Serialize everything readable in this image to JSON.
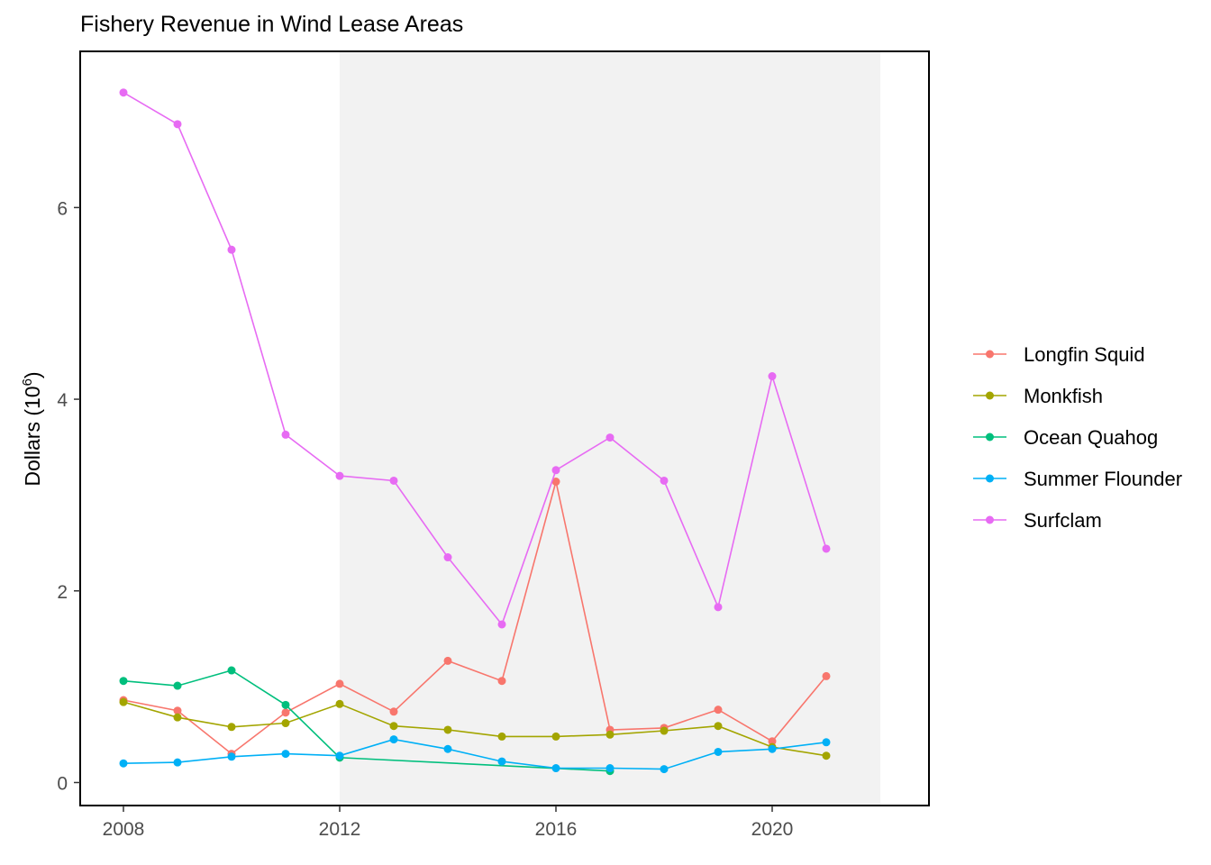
{
  "chart_data": {
    "type": "line",
    "title": "Fishery Revenue in Wind Lease Areas",
    "xlabel": "",
    "ylabel": "Dollars (10",
    "ylabel_superscript": "6",
    "ylabel_suffix": ")",
    "xlim": [
      2007.2,
      2022.9
    ],
    "ylim": [
      -0.24,
      7.63
    ],
    "x_ticks": [
      2008,
      2012,
      2016,
      2020
    ],
    "x_tick_labels": [
      "2008",
      "2012",
      "2016",
      "2020"
    ],
    "y_ticks": [
      0,
      2,
      4,
      6
    ],
    "y_tick_labels": [
      "0",
      "2",
      "4",
      "6"
    ],
    "grid": false,
    "legend_position": "right",
    "shaded_region": {
      "x_start": 2012,
      "x_end": 2022,
      "color": "#f2f2f2"
    },
    "x": [
      2008,
      2009,
      2010,
      2011,
      2012,
      2013,
      2014,
      2015,
      2016,
      2017,
      2018,
      2019,
      2020,
      2021
    ],
    "series": [
      {
        "name": "Longfin Squid",
        "color": "#F8766D",
        "x": [
          2008,
          2009,
          2010,
          2011,
          2012,
          2013,
          2014,
          2015,
          2016,
          2017,
          2018,
          2019,
          2020,
          2021
        ],
        "values": [
          0.86,
          0.75,
          0.3,
          0.73,
          1.03,
          0.74,
          1.27,
          1.06,
          3.14,
          0.55,
          0.57,
          0.76,
          0.43,
          1.11
        ]
      },
      {
        "name": "Monkfish",
        "color": "#A3A500",
        "x": [
          2008,
          2009,
          2010,
          2011,
          2012,
          2013,
          2014,
          2015,
          2016,
          2017,
          2018,
          2019,
          2020,
          2021
        ],
        "values": [
          0.84,
          0.68,
          0.58,
          0.62,
          0.82,
          0.59,
          0.55,
          0.48,
          0.48,
          0.5,
          0.54,
          0.59,
          0.37,
          0.28
        ]
      },
      {
        "name": "Ocean Quahog",
        "color": "#00BF7D",
        "x": [
          2008,
          2009,
          2010,
          2011,
          2012,
          2017
        ],
        "values": [
          1.06,
          1.01,
          1.17,
          0.81,
          0.26,
          0.12
        ]
      },
      {
        "name": "Summer Flounder",
        "color": "#00B0F6",
        "x": [
          2008,
          2009,
          2010,
          2011,
          2012,
          2013,
          2014,
          2015,
          2016,
          2017,
          2018,
          2019,
          2020,
          2021
        ],
        "values": [
          0.2,
          0.21,
          0.27,
          0.3,
          0.28,
          0.45,
          0.35,
          0.22,
          0.15,
          0.15,
          0.14,
          0.32,
          0.35,
          0.42
        ]
      },
      {
        "name": "Surfclam",
        "color": "#E76BF3",
        "x": [
          2008,
          2009,
          2010,
          2011,
          2012,
          2013,
          2014,
          2015,
          2016,
          2017,
          2018,
          2019,
          2020,
          2021
        ],
        "values": [
          7.2,
          6.87,
          5.56,
          3.63,
          3.2,
          3.15,
          2.35,
          1.65,
          3.26,
          3.6,
          3.15,
          1.83,
          4.24,
          2.44
        ]
      }
    ]
  }
}
